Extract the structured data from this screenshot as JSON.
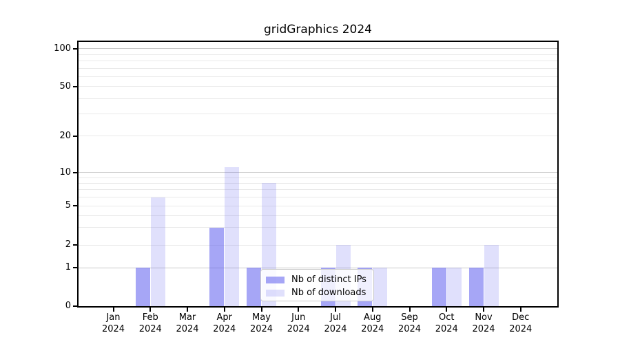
{
  "chart_data": {
    "type": "bar",
    "title": "gridGraphics 2024",
    "categories": [
      {
        "month": "Jan",
        "year": "2024"
      },
      {
        "month": "Feb",
        "year": "2024"
      },
      {
        "month": "Mar",
        "year": "2024"
      },
      {
        "month": "Apr",
        "year": "2024"
      },
      {
        "month": "May",
        "year": "2024"
      },
      {
        "month": "Jun",
        "year": "2024"
      },
      {
        "month": "Jul",
        "year": "2024"
      },
      {
        "month": "Aug",
        "year": "2024"
      },
      {
        "month": "Sep",
        "year": "2024"
      },
      {
        "month": "Oct",
        "year": "2024"
      },
      {
        "month": "Nov",
        "year": "2024"
      },
      {
        "month": "Dec",
        "year": "2024"
      }
    ],
    "series": [
      {
        "name": "Nb of distinct IPs",
        "key": "distinct-ips",
        "base_color": "#5555ee",
        "fill": "rgba(85,85,238,0.52)",
        "values": [
          0,
          1,
          0,
          3,
          1,
          0,
          1,
          1,
          0,
          1,
          1,
          0
        ]
      },
      {
        "name": "Nb of downloads",
        "key": "downloads",
        "base_color": "#5555ee",
        "fill": "rgba(85,85,238,0.18)",
        "values": [
          0,
          6,
          0,
          11,
          8,
          0,
          2,
          1,
          0,
          1,
          2,
          0
        ]
      }
    ],
    "y_axis": {
      "scale": "log-like",
      "ylim": [
        0,
        100
      ],
      "ticks": [
        0,
        1,
        2,
        5,
        10,
        20,
        50,
        100
      ],
      "minor_ticks": [
        3,
        4,
        6,
        7,
        8,
        9,
        30,
        40,
        60,
        70,
        80,
        90
      ]
    },
    "legend": {
      "position": "lower-center",
      "entries": [
        "Nb of distinct IPs",
        "Nb of downloads"
      ]
    },
    "grid": true
  },
  "colors": {
    "background": "#ffffff",
    "frame": "#000000",
    "text": "#000000",
    "major_gridline": "#c9c9c9",
    "minor_gridline": "#e9e9e9",
    "legend_border": "#cccccc"
  }
}
